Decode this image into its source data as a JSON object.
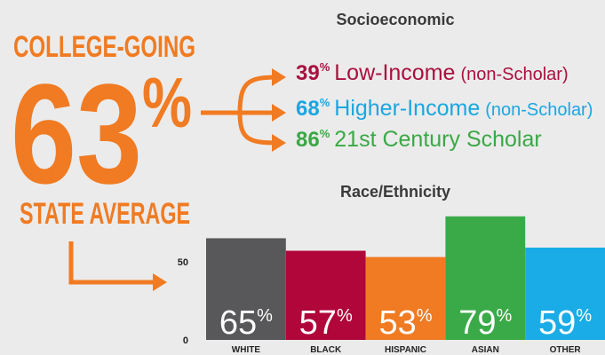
{
  "headline": {
    "top": "COLLEGE-GOING",
    "value": "63",
    "unit": "%",
    "bottom": "STATE AVERAGE",
    "color": "#f07b22"
  },
  "socioeconomic": {
    "title": "Socioeconomic",
    "items": [
      {
        "value": "39%",
        "label": "Low-Income",
        "note": "(non-Scholar)",
        "color": "#a8113f"
      },
      {
        "value": "68%",
        "label": "Higher-Income",
        "note": "(non-Scholar)",
        "color": "#1aa7e0"
      },
      {
        "value": "86%",
        "label": "21st Century Scholar",
        "color": "#3aa845"
      }
    ]
  },
  "chart_data": {
    "type": "bar",
    "title": "Race/Ethnicity",
    "categories": [
      "WHITE",
      "BLACK",
      "HISPANIC",
      "ASIAN",
      "OTHER"
    ],
    "values": [
      65,
      57,
      53,
      79,
      59
    ],
    "value_labels": [
      "65%",
      "57%",
      "53%",
      "79%",
      "59%"
    ],
    "colors": [
      "#58585a",
      "#b0063a",
      "#f07b22",
      "#3aaa48",
      "#1aace6"
    ],
    "ylim": [
      0,
      80
    ],
    "yticks": [
      0,
      50
    ]
  }
}
